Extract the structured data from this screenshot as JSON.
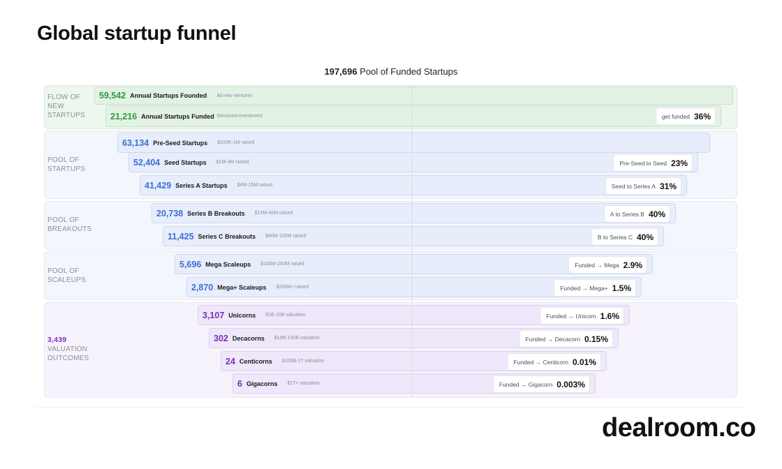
{
  "title": "Global startup funnel",
  "pool": {
    "total": "197,696",
    "label": "Pool of Funded Startups"
  },
  "sections": [
    {
      "lines": [
        "FLOW OF",
        "NEW",
        "STARTUPS"
      ]
    },
    {
      "lines": [
        "POOL OF",
        "STARTUPS"
      ]
    },
    {
      "lines": [
        "POOL OF",
        "BREAKOUTS"
      ]
    },
    {
      "lines": [
        "POOL OF",
        "SCALEUPS"
      ]
    },
    {
      "total": "3,439",
      "lines": [
        "VALUATION",
        "OUTCOMES"
      ]
    }
  ],
  "rows": [
    {
      "count": "59,542",
      "name": "Annual Startups Founded",
      "desc": "All new ventures"
    },
    {
      "count": "21,216",
      "name": "Annual Startups Funded",
      "desc": "Received investment",
      "conv_label": "get funded",
      "conv_pct": "36%"
    },
    {
      "count": "63,134",
      "name": "Pre-Seed Startups",
      "desc": "$100K-1M raised"
    },
    {
      "count": "52,404",
      "name": "Seed Startups",
      "desc": "$1M-4M raised",
      "conv_label": "Pre-Seed to Seed",
      "conv_pct": "23%"
    },
    {
      "count": "41,429",
      "name": "Series A Startups",
      "desc": "$4M-15M raised",
      "conv_label": "Seed to Series A",
      "conv_pct": "31%"
    },
    {
      "count": "20,738",
      "name": "Series B Breakouts",
      "desc": "$15M-40M raised",
      "conv_label": "A to Series B",
      "conv_pct": "40%"
    },
    {
      "count": "11,425",
      "name": "Series C Breakouts",
      "desc": "$40M-100M raised",
      "conv_label": "B to Series C",
      "conv_pct": "40%"
    },
    {
      "count": "5,696",
      "name": "Mega Scaleups",
      "desc": "$100M-250M raised",
      "conv_label": "Funded → Mega",
      "conv_pct": "2.9%"
    },
    {
      "count": "2,870",
      "name": "Mega+ Scaleups",
      "desc": "$250M+ raised",
      "conv_label": "Funded → Mega+",
      "conv_pct": "1.5%"
    },
    {
      "count": "3,107",
      "name": "Unicorns",
      "desc": "$1B-10B valuation",
      "conv_label": "Funded → Unicorn",
      "conv_pct": "1.6%"
    },
    {
      "count": "302",
      "name": "Decacorns",
      "desc": "$10B-100B valuation",
      "conv_label": "Funded → Decacorn",
      "conv_pct": "0.15%"
    },
    {
      "count": "24",
      "name": "Centicorns",
      "desc": "$100B-1T valuation",
      "conv_label": "Funded → Centicorn",
      "conv_pct": "0.01%"
    },
    {
      "count": "6",
      "name": "Gigacorns",
      "desc": "$1T+ valuation",
      "conv_label": "Funded → Gigacorn",
      "conv_pct": "0.003%"
    }
  ],
  "logo": "dealroom.co",
  "colors": {
    "green": "#2e9a3c",
    "blue": "#3d6fd6",
    "purple": "#7b2fb8"
  }
}
